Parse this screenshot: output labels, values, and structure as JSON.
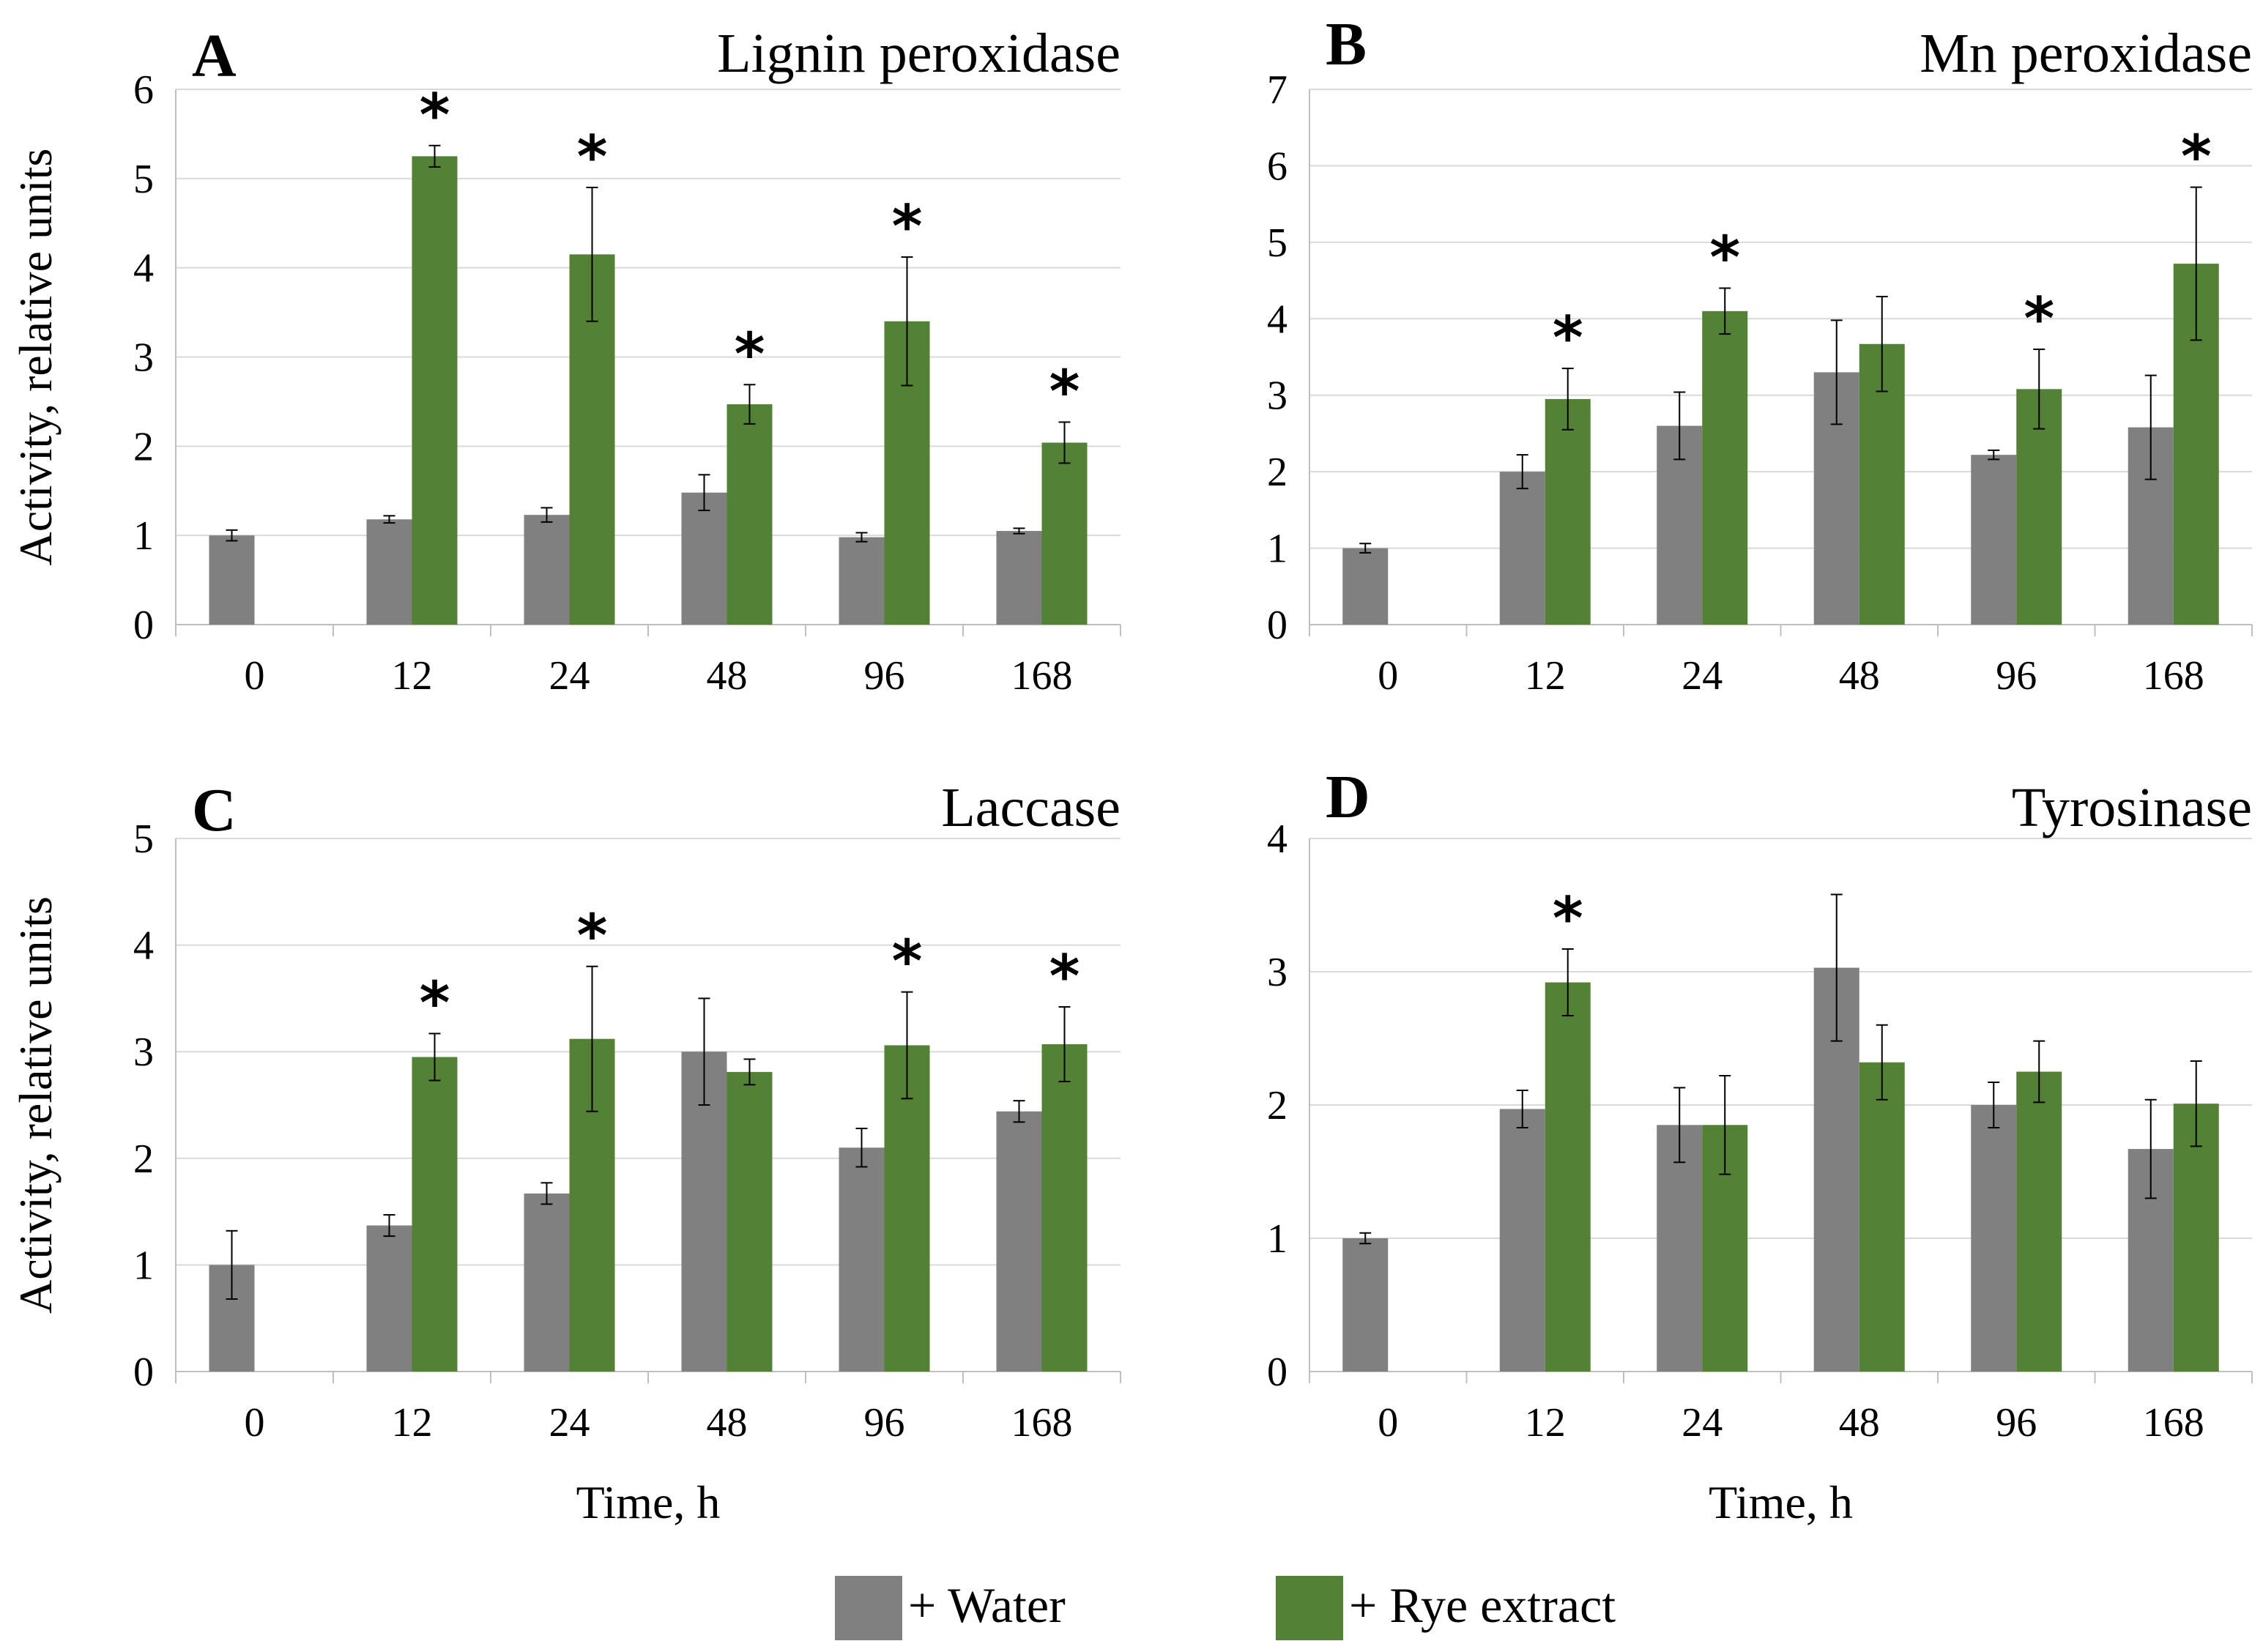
{
  "colors": {
    "water": "#808080",
    "rye": "#538135",
    "grid": "#d9d9d9",
    "axis": "#bfbfbf",
    "error": "#000000"
  },
  "chart_data": [
    {
      "type": "bar",
      "letter": "A",
      "title": "Lignin peroxidase",
      "xlabel": "",
      "ylabel": "Activity,  relative units",
      "categories": [
        "0",
        "12",
        "24",
        "48",
        "96",
        "168"
      ],
      "ylim": [
        0,
        6
      ],
      "yticks": [
        "0",
        "1",
        "2",
        "3",
        "4",
        "5",
        "6"
      ],
      "series": [
        {
          "name": "+ Water",
          "values": [
            1.0,
            1.18,
            1.23,
            1.48,
            0.98,
            1.05
          ],
          "errors": [
            0.06,
            0.04,
            0.08,
            0.2,
            0.05,
            0.03
          ]
        },
        {
          "name": "+ Rye extract",
          "values": [
            null,
            5.25,
            4.15,
            2.47,
            3.4,
            2.04
          ],
          "errors": [
            null,
            0.12,
            0.75,
            0.22,
            0.72,
            0.23
          ],
          "significant": [
            false,
            true,
            true,
            true,
            true,
            true
          ]
        }
      ]
    },
    {
      "type": "bar",
      "letter": "B",
      "title": "Mn peroxidase",
      "xlabel": "",
      "ylabel": "",
      "categories": [
        "0",
        "12",
        "24",
        "48",
        "96",
        "168"
      ],
      "ylim": [
        0,
        7
      ],
      "yticks": [
        "0",
        "1",
        "2",
        "3",
        "4",
        "5",
        "6",
        "7"
      ],
      "series": [
        {
          "name": "+ Water",
          "values": [
            1.0,
            2.0,
            2.6,
            3.3,
            2.22,
            2.58
          ],
          "errors": [
            0.06,
            0.22,
            0.44,
            0.68,
            0.06,
            0.68
          ]
        },
        {
          "name": "+ Rye extract",
          "values": [
            null,
            2.95,
            4.1,
            3.67,
            3.08,
            4.72
          ],
          "errors": [
            null,
            0.4,
            0.3,
            0.62,
            0.52,
            1.0
          ],
          "significant": [
            false,
            true,
            true,
            false,
            true,
            true
          ]
        }
      ]
    },
    {
      "type": "bar",
      "letter": "C",
      "title": "Laccase",
      "xlabel": "Time, h",
      "ylabel": "Activity,  relative units",
      "categories": [
        "0",
        "12",
        "24",
        "48",
        "96",
        "168"
      ],
      "ylim": [
        0,
        5
      ],
      "yticks": [
        "0",
        "1",
        "2",
        "3",
        "4",
        "5"
      ],
      "series": [
        {
          "name": "+ Water",
          "values": [
            1.0,
            1.37,
            1.67,
            3.0,
            2.1,
            2.44
          ],
          "errors": [
            0.32,
            0.1,
            0.1,
            0.5,
            0.18,
            0.1
          ]
        },
        {
          "name": "+ Rye extract",
          "values": [
            null,
            2.95,
            3.12,
            2.81,
            3.06,
            3.07
          ],
          "errors": [
            null,
            0.22,
            0.68,
            0.12,
            0.5,
            0.35
          ],
          "significant": [
            false,
            true,
            true,
            false,
            true,
            true
          ]
        }
      ]
    },
    {
      "type": "bar",
      "letter": "D",
      "title": "Tyrosinase",
      "xlabel": "Time, h",
      "ylabel": "",
      "categories": [
        "0",
        "12",
        "24",
        "48",
        "96",
        "168"
      ],
      "ylim": [
        0,
        4
      ],
      "yticks": [
        "0",
        "1",
        "2",
        "3",
        "4"
      ],
      "series": [
        {
          "name": "+ Water",
          "values": [
            1.0,
            1.97,
            1.85,
            3.03,
            2.0,
            1.67
          ],
          "errors": [
            0.04,
            0.14,
            0.28,
            0.55,
            0.17,
            0.37
          ]
        },
        {
          "name": "+ Rye extract",
          "values": [
            null,
            2.92,
            1.85,
            2.32,
            2.25,
            2.01
          ],
          "errors": [
            null,
            0.25,
            0.37,
            0.28,
            0.23,
            0.32
          ],
          "significant": [
            false,
            true,
            false,
            false,
            false,
            false
          ]
        }
      ]
    }
  ],
  "legend": {
    "items": [
      {
        "label": "+ Water",
        "color": "#808080"
      },
      {
        "label": "+ Rye extract",
        "color": "#538135"
      }
    ]
  },
  "significance_marker": "*"
}
